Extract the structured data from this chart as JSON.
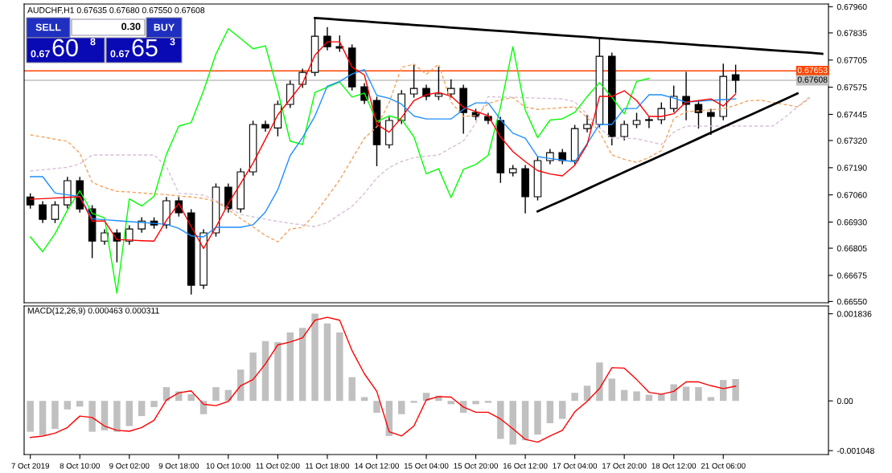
{
  "chart_data": [
    {
      "type": "candlestick",
      "title": "AUDCHF,H1 0.67635 0.67680 0.67550 0.67608",
      "categories": [
        null,
        null,
        null,
        null,
        null,
        null,
        null,
        null,
        null,
        null,
        null,
        null,
        null,
        null,
        null,
        null,
        null,
        null,
        null,
        null,
        null,
        null,
        null,
        null,
        null,
        null,
        null,
        null,
        null,
        null,
        null,
        null,
        null,
        null,
        null,
        null,
        null,
        null,
        null,
        null,
        null,
        null,
        null,
        null,
        null,
        null,
        null,
        null,
        null,
        null,
        null,
        null,
        null,
        null,
        null,
        null,
        null,
        null,
        null,
        null,
        null,
        null,
        null,
        null,
        null
      ],
      "ohlc": [
        [
          0.6705,
          0.67065,
          0.66997,
          0.67012
        ],
        [
          0.67012,
          0.67027,
          0.66928,
          0.66943
        ],
        [
          0.66943,
          0.67027,
          0.66928,
          0.67012
        ],
        [
          0.67012,
          0.67143,
          0.66997,
          0.67128
        ],
        [
          0.67128,
          0.67143,
          0.66978,
          0.66993
        ],
        [
          0.66993,
          0.67008,
          0.6676,
          0.66839
        ],
        [
          0.66839,
          0.66893,
          0.66824,
          0.66878
        ],
        [
          0.66878,
          0.66893,
          0.6674,
          0.66839
        ],
        [
          0.66839,
          0.66912,
          0.66824,
          0.66897
        ],
        [
          0.66897,
          0.6695,
          0.66882,
          0.66935
        ],
        [
          0.66935,
          0.6695,
          0.66901,
          0.66916
        ],
        [
          0.66916,
          0.67047,
          0.66901,
          0.67032
        ],
        [
          0.67032,
          0.67047,
          0.66959,
          0.66974
        ],
        [
          0.66974,
          0.66989,
          0.66586,
          0.66628
        ],
        [
          0.66628,
          0.66893,
          0.66613,
          0.66878
        ],
        [
          0.66878,
          0.67112,
          0.66863,
          0.67097
        ],
        [
          0.67097,
          0.67112,
          0.66978,
          0.66993
        ],
        [
          0.66993,
          0.67185,
          0.66978,
          0.6717
        ],
        [
          0.6717,
          0.67412,
          0.67155,
          0.67397
        ],
        [
          0.67397,
          0.67412,
          0.67365,
          0.6738
        ],
        [
          0.6738,
          0.67508,
          0.67343,
          0.67493
        ],
        [
          0.67493,
          0.67604,
          0.67478,
          0.67589
        ],
        [
          0.67589,
          0.67661,
          0.67574,
          0.67646
        ],
        [
          0.67646,
          0.67907,
          0.67631,
          0.67819
        ],
        [
          0.67819,
          0.6786,
          0.67754,
          0.67769
        ],
        [
          0.67769,
          0.6782,
          0.67747,
          0.67762
        ],
        [
          0.67762,
          0.67777,
          0.67562,
          0.67577
        ],
        [
          0.67577,
          0.67592,
          0.67497,
          0.67512
        ],
        [
          0.67512,
          0.67527,
          0.672,
          0.673
        ],
        [
          0.673,
          0.67431,
          0.67285,
          0.67416
        ],
        [
          0.67416,
          0.67558,
          0.67401,
          0.67543
        ],
        [
          0.67543,
          0.6768,
          0.67528,
          0.67569
        ],
        [
          0.67569,
          0.67584,
          0.67516,
          0.67531
        ],
        [
          0.67531,
          0.6767,
          0.67516,
          0.67543
        ],
        [
          0.67543,
          0.6761,
          0.67528,
          0.67569
        ],
        [
          0.67569,
          0.67584,
          0.67355,
          0.67454
        ],
        [
          0.67454,
          0.67469,
          0.6742,
          0.67435
        ],
        [
          0.67435,
          0.6745,
          0.67401,
          0.67416
        ],
        [
          0.67416,
          0.67431,
          0.6712,
          0.67166
        ],
        [
          0.67166,
          0.672,
          0.67151,
          0.67185
        ],
        [
          0.67185,
          0.672,
          0.66974,
          0.67051
        ],
        [
          0.67051,
          0.67239,
          0.67036,
          0.67224
        ],
        [
          0.67224,
          0.67277,
          0.67209,
          0.67262
        ],
        [
          0.67262,
          0.67277,
          0.67209,
          0.67224
        ],
        [
          0.67224,
          0.67392,
          0.67209,
          0.67377
        ],
        [
          0.67377,
          0.6744,
          0.67362,
          0.67397
        ],
        [
          0.67397,
          0.67811,
          0.67382,
          0.67723
        ],
        [
          0.67723,
          0.67738,
          0.673,
          0.67339
        ],
        [
          0.67339,
          0.67412,
          0.67324,
          0.67397
        ],
        [
          0.67397,
          0.6745,
          0.67382,
          0.67416
        ],
        [
          0.67416,
          0.67431,
          0.67382,
          0.6742
        ],
        [
          0.6742,
          0.675,
          0.67401,
          0.67473
        ],
        [
          0.67473,
          0.6758,
          0.67458,
          0.67531
        ],
        [
          0.67531,
          0.67646,
          0.6742,
          0.67493
        ],
        [
          0.67493,
          0.67508,
          0.6738,
          0.67454
        ],
        [
          0.67454,
          0.67469,
          0.6735,
          0.67435
        ],
        [
          0.67435,
          0.67685,
          0.6742,
          0.67627
        ],
        [
          0.67635,
          0.6768,
          0.6755,
          0.67608
        ],
        null,
        null,
        null,
        null,
        null,
        null,
        null
      ],
      "series": [
        {
          "type": "line",
          "color": "#f4a460",
          "line_style": "dashed",
          "values": [
            0.67347,
            0.67337,
            0.67326,
            0.67316,
            0.6726,
            0.6712,
            0.67095,
            0.67077,
            0.67074,
            0.67069,
            0.67065,
            0.67061,
            0.67055,
            0.6705,
            0.67043,
            0.67029,
            0.66989,
            0.66947,
            0.66907,
            0.66866,
            0.66835,
            0.66897,
            0.66904,
            0.66969,
            0.6705,
            0.67132,
            0.67232,
            0.67331,
            0.67386,
            0.67501,
            0.6767,
            0.67685,
            0.67637,
            0.67685,
            0.67504,
            0.67435,
            0.6744,
            0.67497,
            0.67515,
            0.67525,
            0.6748,
            0.67469,
            0.67473,
            0.67477,
            0.67481,
            0.6743,
            0.67361,
            0.67251,
            0.6723,
            0.67215,
            0.67239,
            0.67272,
            0.67425,
            0.67458,
            0.67462,
            0.67467,
            0.67472,
            0.67489,
            0.6751,
            0.67513,
            0.67502,
            0.67492,
            0.67481,
            0.67523,
            null
          ]
        },
        {
          "type": "line",
          "color": "#d8bfd8",
          "line_style": "dashed",
          "values": [
            0.67174,
            0.6718,
            0.67186,
            0.67192,
            0.67208,
            0.67251,
            0.67251,
            0.67251,
            0.67251,
            0.67251,
            0.67251,
            0.67195,
            0.67068,
            0.67064,
            0.67059,
            0.67033,
            0.67,
            0.66966,
            0.66955,
            0.66944,
            0.66933,
            0.66924,
            0.66916,
            0.66908,
            0.66927,
            0.66966,
            0.67005,
            0.67067,
            0.67141,
            0.67191,
            0.6722,
            0.67238,
            0.67245,
            0.67251,
            0.67285,
            0.67318,
            0.67403,
            0.6753,
            0.67528,
            0.67527,
            0.67525,
            0.67523,
            0.67521,
            0.67519,
            0.67505,
            0.67445,
            0.6738,
            0.67331,
            0.67331,
            0.67329,
            0.67315,
            0.67301,
            0.6736,
            0.67389,
            0.67389,
            0.67389,
            0.67389,
            0.67389,
            0.67389,
            0.67389,
            0.67389,
            0.67432,
            0.67481,
            0.67531,
            null
          ]
        },
        {
          "type": "line",
          "color": "#00ff00",
          "line_style": "solid",
          "values": [
            0.66859,
            0.66788,
            0.66875,
            0.66987,
            0.6708,
            0.66972,
            0.6695,
            0.6659,
            0.67041,
            0.67007,
            0.67053,
            0.67254,
            0.67389,
            0.67406,
            0.67558,
            0.67734,
            0.67855,
            0.67808,
            0.67759,
            0.67773,
            0.67558,
            0.67317,
            0.67301,
            0.6755,
            0.67575,
            0.676,
            0.67528,
            0.67547,
            0.67411,
            0.67438,
            0.67421,
            0.67338,
            0.67161,
            0.67185,
            0.67047,
            0.67182,
            0.67205,
            0.67249,
            0.67481,
            0.67769,
            0.67466,
            0.67334,
            0.67418,
            0.67424,
            0.67455,
            0.6753,
            0.67597,
            0.67527,
            0.67448,
            0.67603,
            0.67617,
            null,
            null,
            null,
            null,
            null,
            null,
            null,
            null,
            null,
            null,
            null,
            null,
            null,
            null
          ]
        },
        {
          "type": "line",
          "color": "#1e90ff",
          "line_style": "solid",
          "values": [
            0.67147,
            0.67147,
            0.67069,
            0.6706,
            0.67052,
            0.66946,
            0.66941,
            0.66937,
            0.66932,
            0.66928,
            0.66924,
            0.66919,
            0.669,
            0.66864,
            0.66859,
            0.66905,
            0.66905,
            0.66905,
            0.66917,
            0.66978,
            0.67085,
            0.67248,
            0.67334,
            0.67437,
            0.6758,
            0.67603,
            0.67638,
            0.67659,
            0.67536,
            0.67522,
            0.67494,
            0.67437,
            0.67423,
            0.67423,
            0.67423,
            0.67469,
            0.675,
            0.675,
            0.6742,
            0.67355,
            0.67331,
            0.67243,
            0.67234,
            0.67226,
            0.67218,
            0.67305,
            0.67397,
            0.67397,
            0.67473,
            0.67473,
            0.67539,
            0.67539,
            0.67523,
            0.67503,
            0.67508,
            0.67512,
            0.67516,
            0.67519,
            null,
            null,
            null,
            null,
            null,
            null,
            null
          ]
        },
        {
          "type": "line",
          "color": "#ff0000",
          "line_style": "solid",
          "values": [
            0.67039,
            0.67042,
            0.67045,
            0.67048,
            0.67051,
            0.66935,
            0.66935,
            0.66846,
            0.66844,
            0.66841,
            0.66839,
            0.66938,
            0.67019,
            0.66908,
            0.66804,
            0.66906,
            0.67018,
            0.67115,
            0.67212,
            0.67326,
            0.67443,
            0.67518,
            0.67594,
            0.67728,
            0.67792,
            0.67792,
            0.67671,
            0.67634,
            0.67397,
            0.6736,
            0.6743,
            0.67511,
            0.67539,
            0.6755,
            0.67532,
            0.67479,
            0.67459,
            0.67439,
            0.67337,
            0.67267,
            0.67219,
            0.67176,
            0.6716,
            0.67151,
            0.67202,
            0.673,
            0.67531,
            0.67531,
            0.67558,
            0.67511,
            0.67435,
            0.67435,
            0.67448,
            0.67504,
            0.67511,
            0.67519,
            0.67485,
            0.67543,
            null,
            null,
            null,
            null,
            null,
            null,
            null
          ]
        },
        {
          "type": "line",
          "color": "#000000",
          "line_style": "solid",
          "values": [
            null,
            null,
            null,
            null,
            null,
            null,
            null,
            null,
            null,
            null,
            null,
            null,
            null,
            null,
            null,
            null,
            null,
            null,
            null,
            null,
            null,
            null,
            null,
            0.67906,
            0.67902,
            0.67898,
            0.67894,
            0.6789,
            0.67885,
            0.67881,
            0.67877,
            0.67873,
            0.67869,
            0.67865,
            0.6786,
            0.67856,
            0.67852,
            0.67848,
            0.67844,
            0.6784,
            0.67835,
            0.67831,
            0.67827,
            0.67823,
            0.67819,
            0.67815,
            0.6781,
            0.67806,
            0.67802,
            0.67798,
            0.67794,
            0.6779,
            0.67785,
            0.67781,
            0.67777,
            0.67773,
            0.67769,
            0.67765,
            0.6776,
            0.67756,
            0.67752,
            0.67748,
            0.67744,
            0.6774,
            0.67735
          ]
        },
        {
          "type": "line",
          "color": "#000000",
          "line_style": "solid",
          "values": [
            null,
            null,
            null,
            null,
            null,
            null,
            null,
            null,
            null,
            null,
            null,
            null,
            null,
            null,
            null,
            null,
            null,
            null,
            null,
            null,
            null,
            null,
            null,
            null,
            null,
            null,
            null,
            null,
            null,
            null,
            null,
            null,
            null,
            null,
            null,
            null,
            null,
            null,
            null,
            null,
            null,
            0.66981,
            0.67008,
            0.67034,
            0.67061,
            0.67088,
            0.67115,
            0.67142,
            0.67169,
            0.67196,
            0.67222,
            0.67249,
            0.67276,
            0.67303,
            0.6733,
            0.67357,
            0.67384,
            0.67411,
            0.67437,
            0.67464,
            0.67491,
            0.67518,
            0.67545,
            null,
            null
          ]
        }
      ],
      "ref_lines": [
        {
          "axis": "y",
          "value": 0.67653,
          "label": "0.67653",
          "color": "#ff4500"
        },
        {
          "axis": "y",
          "value": 0.67608,
          "label": "0.67608",
          "color": "#c0c0c0"
        }
      ],
      "annotations": [
        "SELL",
        "0.30",
        "BUY",
        "0.67",
        "60",
        "8",
        "0.67",
        "65",
        "3"
      ],
      "ylim": [
        0.66544,
        0.67973
      ],
      "yticks": [
        {
          "value": 0.6655,
          "label": "0.66550"
        },
        0.66675,
        0.66805,
        {
          "value": 0.6693,
          "label": "0.66930"
        },
        {
          "value": 0.6706,
          "label": "0.67060"
        },
        {
          "value": 0.6719,
          "label": "0.67190"
        },
        {
          "value": 0.6732,
          "label": "0.67320"
        },
        0.67445,
        0.67575,
        0.67705,
        0.67835,
        {
          "value": 0.6796,
          "label": "0.67960"
        }
      ],
      "tick_labels": "y",
      "grid": false
    },
    {
      "type": "bar",
      "title": "MACD(12,26,9) 0.000463 0.000311",
      "categories": [
        "7 Oct 2019",
        null,
        null,
        null,
        "8 Oct 10:00",
        null,
        null,
        null,
        "9 Oct 02:00",
        null,
        null,
        null,
        "9 Oct 18:00",
        null,
        null,
        null,
        "10 Oct 10:00",
        null,
        null,
        null,
        "11 Oct 02:00",
        null,
        null,
        null,
        "11 Oct 18:00",
        null,
        null,
        null,
        "14 Oct 12:00",
        null,
        null,
        null,
        "15 Oct 04:00",
        null,
        null,
        null,
        "15 Oct 20:00",
        null,
        null,
        null,
        "16 Oct 12:00",
        null,
        null,
        null,
        "17 Oct 04:00",
        null,
        null,
        null,
        "17 Oct 20:00",
        null,
        null,
        null,
        "18 Oct 12:00",
        null,
        null,
        null,
        "21 Oct 06:00",
        null,
        null,
        null,
        null,
        null,
        null,
        null,
        null
      ],
      "series": [
        {
          "type": "bar",
          "color": "#c0c0c0",
          "values": [
            -0.00065,
            -0.00072,
            -0.00059,
            -0.00018,
            -0.00012,
            -0.00065,
            -0.00062,
            -0.00065,
            -0.00053,
            -0.00032,
            -0.00013,
            0.00029,
            0.0002,
            0.00014,
            -0.00028,
            0.00029,
            0.00023,
            0.00066,
            0.00102,
            0.00126,
            0.00124,
            0.00144,
            0.00154,
            0.00184,
            0.00163,
            0.00144,
            0.0005,
            8e-05,
            -0.00025,
            -0.00074,
            -0.00028,
            -4e-05,
            0.00017,
            0.00011,
            -7e-05,
            -0.00025,
            -7e-05,
            -4e-05,
            -0.0008,
            -0.00092,
            -0.00083,
            -0.00071,
            -0.00047,
            -0.00038,
            0.00017,
            0.00032,
            0.00081,
            0.00047,
            0.00023,
            0.0002,
            0.00013,
            0.00015,
            0.00035,
            0.0003,
            0.00029,
            8e-05,
            0.00044,
            0.00046,
            null,
            null,
            null,
            null,
            null,
            null,
            null
          ]
        },
        {
          "type": "line",
          "color": "#ff0000",
          "values": [
            -0.00077,
            -0.00074,
            -0.00068,
            -0.00056,
            -0.00032,
            -0.00035,
            -0.00053,
            -0.00062,
            -0.00064,
            -0.00056,
            -0.00041,
            2e-05,
            0.00017,
            0.00021,
            -7e-05,
            -0.0001,
            -1e-05,
            0.00032,
            0.00045,
            0.00078,
            0.00118,
            0.00124,
            0.00133,
            0.0017,
            0.00176,
            0.0017,
            0.00106,
            0.00057,
            0.0002,
            -0.00065,
            -0.00074,
            -0.00053,
            2e-05,
            9e-05,
            8e-05,
            -0.00013,
            -0.00024,
            -0.00024,
            -0.00038,
            -0.00059,
            -0.00081,
            -0.00087,
            -0.00074,
            -0.00062,
            -0.00023,
            -1e-05,
            0.00026,
            0.0007,
            0.00069,
            0.00045,
            0.00018,
            0.00014,
            0.0002,
            0.0004,
            0.0004,
            0.00032,
            0.00026,
            0.00031,
            null,
            null,
            null,
            null,
            null,
            null,
            null
          ]
        }
      ],
      "ylim": [
        -0.00113,
        0.002
      ],
      "yticks": [
        {
          "value": -0.001048,
          "label": "-0.001048"
        },
        {
          "value": 0,
          "label": "0.00"
        },
        0.001836
      ],
      "grid": false
    }
  ]
}
